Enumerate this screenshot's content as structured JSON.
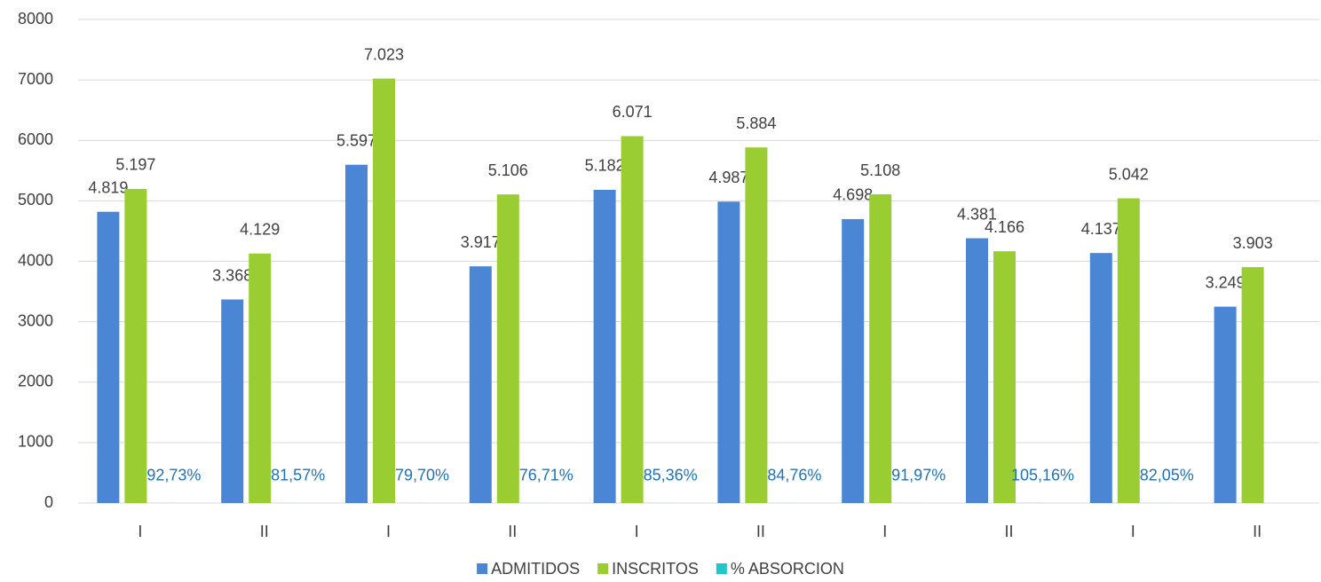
{
  "chart_data": {
    "type": "bar",
    "categories": [
      "I",
      "II",
      "I",
      "II",
      "I",
      "II",
      "I",
      "II",
      "I",
      "II"
    ],
    "series": [
      {
        "name": "ADMITIDOS",
        "color": "#4a86d4",
        "values": [
          4819,
          3368,
          5597,
          3917,
          5182,
          4987,
          4698,
          4381,
          4137,
          3249
        ],
        "value_labels": [
          "4.819",
          "3.368",
          "5.597",
          "3.917",
          "5.182",
          "4.987",
          "4.698",
          "4.381",
          "4.137",
          "3.249"
        ]
      },
      {
        "name": "INSCRITOS",
        "color": "#9acd32",
        "values": [
          5197,
          4129,
          7023,
          5106,
          6071,
          5884,
          5108,
          4166,
          5042,
          3903
        ],
        "value_labels": [
          "5.197",
          "4.129",
          "7.023",
          "5.106",
          "6.071",
          "5.884",
          "5.108",
          "4.166",
          "5.042",
          "3.903"
        ]
      },
      {
        "name": "% ABSORCION",
        "color": "#1fc8c8",
        "values": [
          0.9273,
          0.8157,
          0.797,
          0.7671,
          0.8536,
          0.8476,
          0.9197,
          1.0516,
          0.8205,
          null
        ],
        "value_labels": [
          "92,73%",
          "81,57%",
          "79,70%",
          "76,71%",
          "85,36%",
          "84,76%",
          "91,97%",
          "105,16%",
          "82,05%",
          null
        ]
      }
    ],
    "ylim": [
      0,
      8000
    ],
    "yticks": [
      0,
      1000,
      2000,
      3000,
      4000,
      5000,
      6000,
      7000,
      8000
    ],
    "grid": true,
    "legend": "bottom"
  }
}
